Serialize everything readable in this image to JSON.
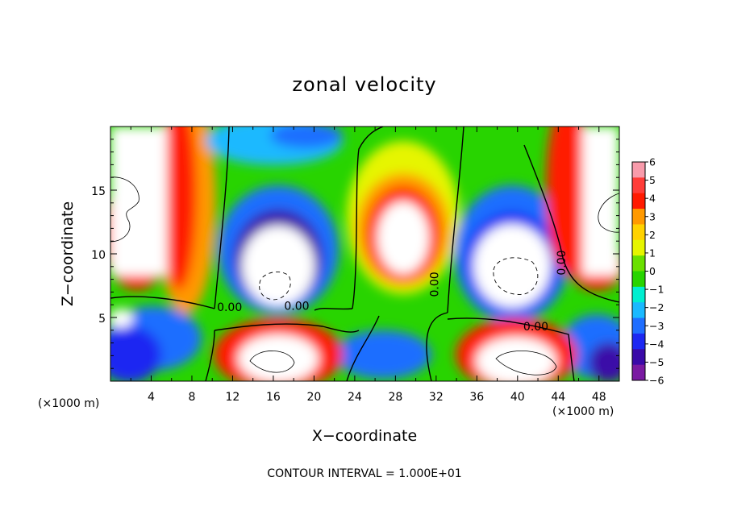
{
  "chart_data": {
    "type": "heatmap",
    "title": "zonal velocity",
    "xlabel": "X−coordinate",
    "ylabel": "Z−coordinate",
    "x_unit": "(×1000 m)",
    "y_unit": "(×1000 m)",
    "xlim": [
      0,
      50
    ],
    "ylim": [
      0,
      20
    ],
    "x_ticks": [
      "4",
      "8",
      "12",
      "16",
      "20",
      "24",
      "28",
      "32",
      "36",
      "40",
      "44",
      "48"
    ],
    "y_ticks": [
      "5",
      "10",
      "15"
    ],
    "colorbar": {
      "range": [
        -6,
        6
      ],
      "ticks": [
        "6",
        "5",
        "4",
        "3",
        "2",
        "1",
        "0",
        "−1",
        "−2",
        "−3",
        "−4",
        "−5",
        "−6"
      ],
      "colors": [
        "#f89bab",
        "#ff3c38",
        "#ff1a00",
        "#ff9900",
        "#ffd200",
        "#e6f500",
        "#6ae000",
        "#28d400",
        "#00eed0",
        "#1ab9ff",
        "#1f6eff",
        "#1d28f2",
        "#3a0aa8",
        "#7a1aa2"
      ]
    },
    "contour_labels": [
      {
        "text": "0.00",
        "x": 11.7,
        "z": 5.5
      },
      {
        "text": "0.00",
        "x": 18.3,
        "z": 5.6
      },
      {
        "text": "0.00",
        "x": 32.2,
        "z": 7.6
      },
      {
        "text": "0.00",
        "x": 44.7,
        "z": 9.3
      },
      {
        "text": "0.00",
        "x": 41.8,
        "z": 4.0
      }
    ],
    "field_features": [
      {
        "kind": "max",
        "x": 5.5,
        "z": 15,
        "value": 6
      },
      {
        "kind": "min",
        "x": 18,
        "z": 9,
        "value": -6
      },
      {
        "kind": "max",
        "x": 29,
        "z": 11.5,
        "value": 6
      },
      {
        "kind": "min",
        "x": 40,
        "z": 9,
        "value": -6
      },
      {
        "kind": "max",
        "x": 45,
        "z": 15,
        "value": 6
      },
      {
        "kind": "max",
        "x": 36.5,
        "z": 1.5,
        "value": 6
      },
      {
        "kind": "max",
        "x": 17,
        "z": 1.5,
        "value": 6
      },
      {
        "kind": "min",
        "x": 4,
        "z": 3,
        "value": -6
      },
      {
        "kind": "min",
        "x": 47,
        "z": 3,
        "value": -6
      }
    ],
    "grid": false,
    "legend": "colorbar-right"
  },
  "footer": {
    "contour_interval": "CONTOUR INTERVAL = 1.000E+01"
  }
}
